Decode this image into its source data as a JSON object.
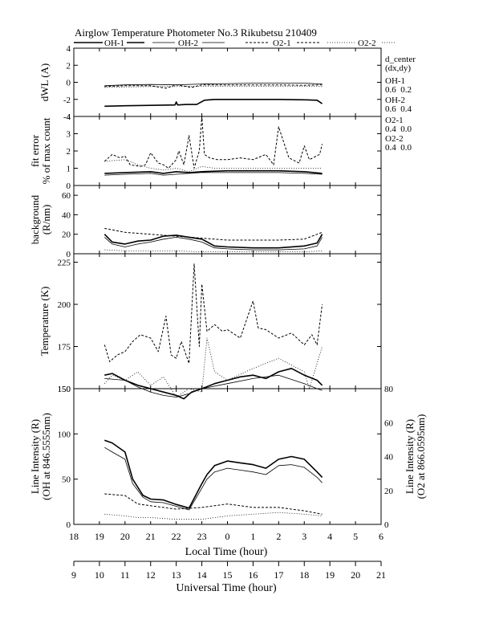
{
  "header": {
    "title": "Airglow Temperature Photometer No.3  Rikubetsu    210409",
    "legend": [
      {
        "label": "OH-1",
        "style": "solid-thick"
      },
      {
        "label": "OH-2",
        "style": "solid-thin"
      },
      {
        "label": "O2-1",
        "style": "dash"
      },
      {
        "label": "O2-2",
        "style": "dot"
      }
    ]
  },
  "side_info": {
    "title": [
      "d_center",
      "(dx,dy)"
    ],
    "channels": [
      {
        "name": "OH-1",
        "value": "0.6  0.2"
      },
      {
        "name": "OH-2",
        "value": "0.6  0.4"
      },
      {
        "name": "O2-1",
        "value": "0.4  0.0"
      },
      {
        "name": "O2-2",
        "value": "0.4  0.0"
      }
    ]
  },
  "axes": {
    "local_time": {
      "label": "Local Time (hour)",
      "ticks": [
        "18",
        "19",
        "20",
        "21",
        "22",
        "23",
        "0",
        "1",
        "2",
        "3",
        "4",
        "5",
        "6"
      ]
    },
    "universal_time": {
      "label": "Universal Time (hour)",
      "ticks": [
        "9",
        "10",
        "11",
        "12",
        "13",
        "14",
        "15",
        "16",
        "17",
        "18",
        "19",
        "20",
        "21"
      ]
    }
  },
  "chart_data": [
    {
      "type": "line",
      "panel": "dwl",
      "ylabel": "dWL (A)",
      "ylim": [
        -4,
        4
      ],
      "yticks": [
        "4",
        "2",
        "0",
        "-2",
        "-4"
      ],
      "x_unit": "local hour (18-30)",
      "series": [
        {
          "name": "OH-1",
          "x": [
            19.2,
            20,
            21,
            21.95,
            22,
            22.05,
            22.4,
            22.8,
            23.1,
            23.5,
            24,
            25,
            26,
            27,
            27.5,
            27.6,
            27.7
          ],
          "y": [
            -2.8,
            -2.75,
            -2.7,
            -2.65,
            -2.3,
            -2.65,
            -2.6,
            -2.6,
            -2.1,
            -2.0,
            -2.0,
            -2.0,
            -2.0,
            -2.05,
            -2.1,
            -2.3,
            -2.5
          ]
        },
        {
          "name": "OH-2",
          "x": [
            19.2,
            20,
            21,
            22,
            23,
            24,
            25,
            26,
            27,
            27.7
          ],
          "y": [
            -0.4,
            -0.3,
            -0.25,
            -0.3,
            -0.2,
            -0.15,
            -0.1,
            -0.1,
            -0.1,
            -0.2
          ]
        },
        {
          "name": "O2-1",
          "x": [
            19.2,
            20,
            21,
            21.6,
            22,
            22.6,
            23,
            24,
            25,
            26,
            27,
            27.7
          ],
          "y": [
            -0.5,
            -0.4,
            -0.4,
            -0.7,
            -0.3,
            -0.6,
            -0.3,
            -0.3,
            -0.3,
            -0.3,
            -0.35,
            -0.3
          ]
        },
        {
          "name": "O2-2",
          "x": [
            19.2,
            20,
            21,
            22,
            23,
            24,
            25,
            26,
            27,
            27.7
          ],
          "y": [
            -0.6,
            -0.55,
            -0.5,
            -0.5,
            -0.45,
            -0.45,
            -0.45,
            -0.45,
            -0.45,
            -0.5
          ]
        }
      ]
    },
    {
      "type": "line",
      "panel": "fit_error",
      "ylabel": [
        "fit error",
        "% of max count"
      ],
      "ylim": [
        0,
        4
      ],
      "yticks": [
        "4",
        "3",
        "2",
        "1",
        "0"
      ],
      "x_unit": "local hour (18-30)",
      "series": [
        {
          "name": "OH-1",
          "x": [
            19.2,
            20,
            21,
            21.5,
            22,
            22.5,
            23,
            24,
            25,
            26,
            27,
            27.7
          ],
          "y": [
            0.7,
            0.75,
            0.8,
            0.7,
            0.8,
            0.75,
            0.8,
            0.85,
            0.85,
            0.85,
            0.8,
            0.7
          ]
        },
        {
          "name": "OH-2",
          "x": [
            19.2,
            20,
            21,
            21.5,
            22,
            22.5,
            23,
            24,
            25,
            26,
            27,
            27.7
          ],
          "y": [
            0.6,
            0.65,
            0.7,
            0.6,
            0.65,
            0.7,
            0.75,
            0.75,
            0.75,
            0.75,
            0.7,
            0.65
          ]
        },
        {
          "name": "O2-1",
          "x": [
            19.2,
            19.5,
            19.8,
            20,
            20.2,
            20.6,
            20.8,
            21,
            21.3,
            21.5,
            21.7,
            22,
            22.1,
            22.3,
            22.5,
            22.7,
            22.9,
            23.0,
            23.1,
            23.3,
            23.6,
            24,
            24.5,
            25,
            25.5,
            25.8,
            26,
            26.4,
            26.8,
            27,
            27.2,
            27.6,
            27.7
          ],
          "y": [
            1.4,
            1.8,
            1.6,
            1.7,
            1.2,
            1.1,
            1.2,
            1.9,
            1.3,
            1.2,
            1.0,
            1.5,
            2.0,
            1.2,
            2.9,
            1.0,
            2.0,
            4.0,
            1.8,
            1.6,
            1.5,
            1.5,
            1.6,
            1.5,
            1.8,
            1.2,
            3.4,
            1.6,
            1.3,
            2.3,
            1.5,
            1.8,
            2.4
          ]
        },
        {
          "name": "O2-2",
          "x": [
            19.2,
            20,
            20.5,
            21,
            21.5,
            22,
            22.5,
            23,
            23.5,
            24,
            25,
            26,
            27,
            27.7
          ],
          "y": [
            1.4,
            1.5,
            1.2,
            1.0,
            0.9,
            1.0,
            0.8,
            1.1,
            1.0,
            1.0,
            1.0,
            1.0,
            1.0,
            1.0
          ]
        }
      ]
    },
    {
      "type": "line",
      "panel": "background",
      "ylabel": [
        "background",
        "(R/nm)"
      ],
      "ylim": [
        0,
        70
      ],
      "yticks": [
        "60",
        "40",
        "20",
        "0"
      ],
      "x_unit": "local hour (18-30)",
      "series": [
        {
          "name": "OH-1",
          "x": [
            19.2,
            19.5,
            20,
            20.5,
            21,
            21.5,
            22,
            22.5,
            23,
            23.5,
            24,
            25,
            26,
            27,
            27.5,
            27.7
          ],
          "y": [
            20,
            12,
            10,
            13,
            14,
            18,
            19,
            17,
            15,
            8,
            7,
            6,
            6,
            8,
            11,
            20
          ]
        },
        {
          "name": "OH-2",
          "x": [
            19.2,
            19.5,
            20,
            20.5,
            21,
            21.5,
            22,
            22.5,
            23,
            23.5,
            24,
            25,
            26,
            27,
            27.5,
            27.7
          ],
          "y": [
            17,
            10,
            7,
            10,
            12,
            15,
            17,
            15,
            12,
            6,
            5,
            4,
            4,
            5,
            8,
            17
          ]
        },
        {
          "name": "O2-1",
          "x": [
            19.2,
            20,
            21,
            22,
            23,
            24,
            25,
            26,
            27,
            27.7
          ],
          "y": [
            26,
            22,
            20,
            18,
            16,
            14,
            14,
            14,
            15,
            22
          ]
        },
        {
          "name": "O2-2",
          "x": [
            19.2,
            20,
            21,
            22,
            23,
            24,
            25,
            26,
            27,
            27.7
          ],
          "y": [
            4,
            3,
            3,
            3,
            2,
            2,
            2,
            2,
            2,
            3
          ]
        }
      ]
    },
    {
      "type": "line",
      "panel": "temperature",
      "ylabel": "Temperature (K)",
      "ylim": [
        150,
        230
      ],
      "yticks": [
        "225",
        "200",
        "175",
        "150"
      ],
      "x_unit": "local hour (18-30)",
      "series": [
        {
          "name": "OH-1",
          "x": [
            19.2,
            19.5,
            20,
            20.5,
            21,
            21.5,
            22,
            22.3,
            22.6,
            23,
            23.5,
            24,
            24.5,
            25,
            25.5,
            26,
            26.5,
            27,
            27.5,
            27.7
          ],
          "y": [
            158,
            159,
            155,
            152,
            150,
            148,
            146,
            144,
            148,
            150,
            153,
            155,
            157,
            158,
            156,
            160,
            162,
            158,
            155,
            152
          ]
        },
        {
          "name": "OH-2",
          "x": [
            19.2,
            20,
            20.5,
            21,
            21.5,
            22,
            22.5,
            23,
            24,
            25,
            26,
            27,
            27.5,
            27.7
          ],
          "y": [
            156,
            155,
            151,
            148,
            146,
            145,
            147,
            150,
            153,
            156,
            158,
            153,
            150,
            149
          ]
        },
        {
          "name": "O2-1",
          "x": [
            19.2,
            19.4,
            19.7,
            20,
            20.3,
            20.6,
            21,
            21.3,
            21.6,
            21.8,
            22.0,
            22.2,
            22.5,
            22.7,
            22.9,
            23.0,
            23.2,
            23.5,
            23.8,
            24,
            24.5,
            25,
            25.2,
            25.5,
            26,
            26.5,
            27,
            27.3,
            27.5,
            27.7
          ],
          "y": [
            176,
            166,
            170,
            172,
            178,
            182,
            180,
            172,
            193,
            170,
            168,
            178,
            165,
            224,
            175,
            212,
            184,
            188,
            184,
            185,
            180,
            202,
            186,
            185,
            180,
            183,
            176,
            182,
            176,
            200
          ]
        },
        {
          "name": "O2-2",
          "x": [
            19.2,
            19.5,
            20,
            20.5,
            21,
            21.5,
            22,
            22.5,
            23,
            23.2,
            23.5,
            24,
            25,
            26,
            27,
            27.2,
            27.7
          ],
          "y": [
            153,
            158,
            155,
            160,
            152,
            157,
            145,
            150,
            148,
            180,
            160,
            155,
            162,
            168,
            160,
            150,
            175
          ]
        }
      ]
    },
    {
      "type": "line",
      "panel": "line_intensity",
      "ylabel": [
        "Line Intensity (R)",
        "(OH at 846.5555nm)"
      ],
      "ylabel_right": [
        "Line Intensity (R)",
        "(O2 at 866.0595nm)"
      ],
      "ylim": [
        0,
        150
      ],
      "yticks": [
        "150",
        "100",
        "50",
        "0"
      ],
      "ylim_right": [
        0,
        80
      ],
      "yticks_right": [
        "80",
        "60",
        "40",
        "20",
        "0"
      ],
      "x_unit": "local hour (18-30)",
      "series": [
        {
          "name": "OH-1",
          "axis": "left",
          "x": [
            19.2,
            19.5,
            20,
            20.3,
            20.7,
            21,
            21.5,
            22,
            22.5,
            23,
            23.2,
            23.5,
            24,
            24.5,
            25,
            25.5,
            26,
            26.5,
            27,
            27.5,
            27.7
          ],
          "y": [
            93,
            90,
            80,
            50,
            32,
            28,
            27,
            22,
            18,
            45,
            55,
            65,
            70,
            68,
            66,
            62,
            72,
            75,
            72,
            58,
            52
          ]
        },
        {
          "name": "OH-2",
          "axis": "left",
          "x": [
            19.2,
            19.5,
            20,
            20.3,
            20.7,
            21,
            21.5,
            22,
            22.5,
            23,
            23.2,
            23.5,
            24,
            24.5,
            25,
            25.5,
            26,
            26.5,
            27,
            27.5,
            27.7
          ],
          "y": [
            85,
            80,
            72,
            45,
            30,
            25,
            24,
            20,
            16,
            40,
            50,
            58,
            62,
            60,
            58,
            55,
            65,
            66,
            63,
            52,
            46
          ]
        },
        {
          "name": "O2-1",
          "axis": "right",
          "x": [
            19.2,
            20,
            20.5,
            21,
            22,
            23,
            24,
            25,
            26,
            27,
            27.7
          ],
          "y": [
            18,
            17,
            12,
            11,
            9,
            10,
            12,
            10,
            10,
            8,
            6
          ]
        },
        {
          "name": "O2-2",
          "axis": "right",
          "x": [
            19.2,
            20,
            20.5,
            21,
            22,
            23,
            24,
            25,
            26,
            27,
            27.7
          ],
          "y": [
            6,
            5,
            4,
            4,
            3,
            3,
            5,
            6,
            7,
            6,
            5
          ]
        }
      ]
    }
  ]
}
